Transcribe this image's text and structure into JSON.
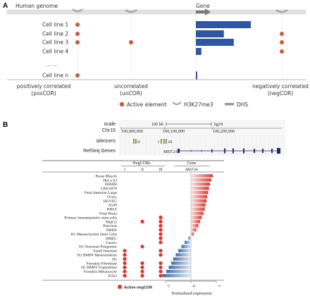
{
  "panel_a": {
    "label": "A",
    "genome_label": "Human genome",
    "gene_label": "Gene",
    "cell_lines": [
      "Cell line 1",
      "Cell line 2",
      "Cell line 3",
      "Cell line 4",
      "Cell line n"
    ],
    "ellipsis": "... ...",
    "categories": [
      {
        "line1": "positively correlated",
        "line2": "(posCOR)"
      },
      {
        "line1": "uncorrelated",
        "line2": "(unCOR)"
      },
      {
        "line1": "negatively correlated",
        "line2": "(negCOR)"
      }
    ],
    "legend": {
      "active": "Active element",
      "h3k27": "H3K27me3",
      "dhs": "DHS"
    },
    "expression_levels": [
      1.0,
      0.51,
      0.69,
      0.1,
      0.03
    ],
    "active_pattern": {
      "posCOR": [
        true,
        true,
        true,
        false,
        true
      ],
      "unCOR": [
        false,
        false,
        true,
        false,
        false
      ],
      "negCOR": [
        false,
        true,
        true,
        true,
        false
      ]
    },
    "colors": {
      "active": "#d4583a",
      "expression": "#2f56a2",
      "grey": "#bdbdbd"
    }
  },
  "panel_b": {
    "label": "B",
    "browser": {
      "scale_label": "scale",
      "scale_value": "100 kb",
      "assembly": "hg19",
      "chrom": "Chr15",
      "ticks": [
        "100,000,000",
        "100,100,000",
        "100,200,000"
      ],
      "track_silencers": "silencers",
      "track_genes": "RefSeq Genes",
      "gene_name": "MEF2A",
      "silencer_labels": [
        "II",
        "I",
        "III"
      ]
    },
    "table": {
      "group_label": "NegCORs",
      "gene_header": "Gene",
      "gene_name": "MEF2A",
      "columns": [
        "I",
        "II",
        "III"
      ],
      "rows": [
        {
          "name": "Psoas Muscle",
          "expr": 1.72,
          "active": [
            false,
            false,
            false
          ]
        },
        {
          "name": "HeLa S3",
          "expr": 1.6,
          "active": [
            false,
            false,
            false
          ]
        },
        {
          "name": "HSMM",
          "expr": 1.5,
          "active": [
            false,
            false,
            false
          ]
        },
        {
          "name": "GM12878",
          "expr": 1.42,
          "active": [
            false,
            false,
            false
          ]
        },
        {
          "name": "Fetal Intestine Large",
          "expr": 1.35,
          "active": [
            false,
            false,
            false
          ]
        },
        {
          "name": "Ovary",
          "expr": 1.28,
          "active": [
            false,
            false,
            false
          ]
        },
        {
          "name": "HUVEC",
          "expr": 1.22,
          "active": [
            false,
            false,
            false
          ]
        },
        {
          "name": "A549",
          "expr": 1.15,
          "active": [
            false,
            false,
            false
          ]
        },
        {
          "name": "NHLF",
          "expr": 1.08,
          "active": [
            false,
            false,
            false
          ]
        },
        {
          "name": "Fetal Brain",
          "expr": 0.98,
          "active": [
            false,
            false,
            false
          ]
        },
        {
          "name": "Primary hematopoietic stem cells",
          "expr": 0.85,
          "active": [
            false,
            false,
            true
          ]
        },
        {
          "name": "HepG2",
          "expr": 0.72,
          "active": [
            false,
            true,
            true
          ]
        },
        {
          "name": "Pancreas",
          "expr": 0.58,
          "active": [
            false,
            false,
            true
          ]
        },
        {
          "name": "NHEK",
          "expr": 0.42,
          "active": [
            false,
            false,
            true
          ]
        },
        {
          "name": "H1 Mesenchymal Stem Cells",
          "expr": 0.22,
          "active": [
            false,
            false,
            true
          ]
        },
        {
          "name": "HMEC",
          "expr": -0.2,
          "active": [
            false,
            false,
            true
          ]
        },
        {
          "name": "Gastric",
          "expr": -0.5,
          "active": [
            false,
            false,
            true
          ]
        },
        {
          "name": "H1 Neuronal Progenitor",
          "expr": -0.75,
          "active": [
            false,
            true,
            false
          ]
        },
        {
          "name": "Small Intestine",
          "expr": -1.0,
          "active": [
            true,
            false,
            true
          ]
        },
        {
          "name": "H1 BMP4 Mesendoderm",
          "expr": -1.2,
          "active": [
            true,
            false,
            true
          ]
        },
        {
          "name": "H1",
          "expr": -1.4,
          "active": [
            true,
            false,
            false
          ]
        },
        {
          "name": "Foreskin Fibroblast",
          "expr": -1.55,
          "active": [
            true,
            true,
            true
          ]
        },
        {
          "name": "H1 BMP4 Trophoblast",
          "expr": -1.75,
          "active": [
            true,
            true,
            true
          ]
        },
        {
          "name": "Foreskin Melanocyte",
          "expr": -1.95,
          "active": [
            true,
            true,
            true
          ]
        },
        {
          "name": "K562",
          "expr": -2.25,
          "active": [
            true,
            true,
            true
          ]
        }
      ],
      "axis_ticks": [
        "-2",
        "0",
        "2"
      ],
      "axis_label": "Normalized expression",
      "legend_active": "Active negCOR",
      "colors": {
        "dot": "#e8322a",
        "pos": "#e33a32",
        "neg": "#3a6fb0"
      }
    }
  }
}
